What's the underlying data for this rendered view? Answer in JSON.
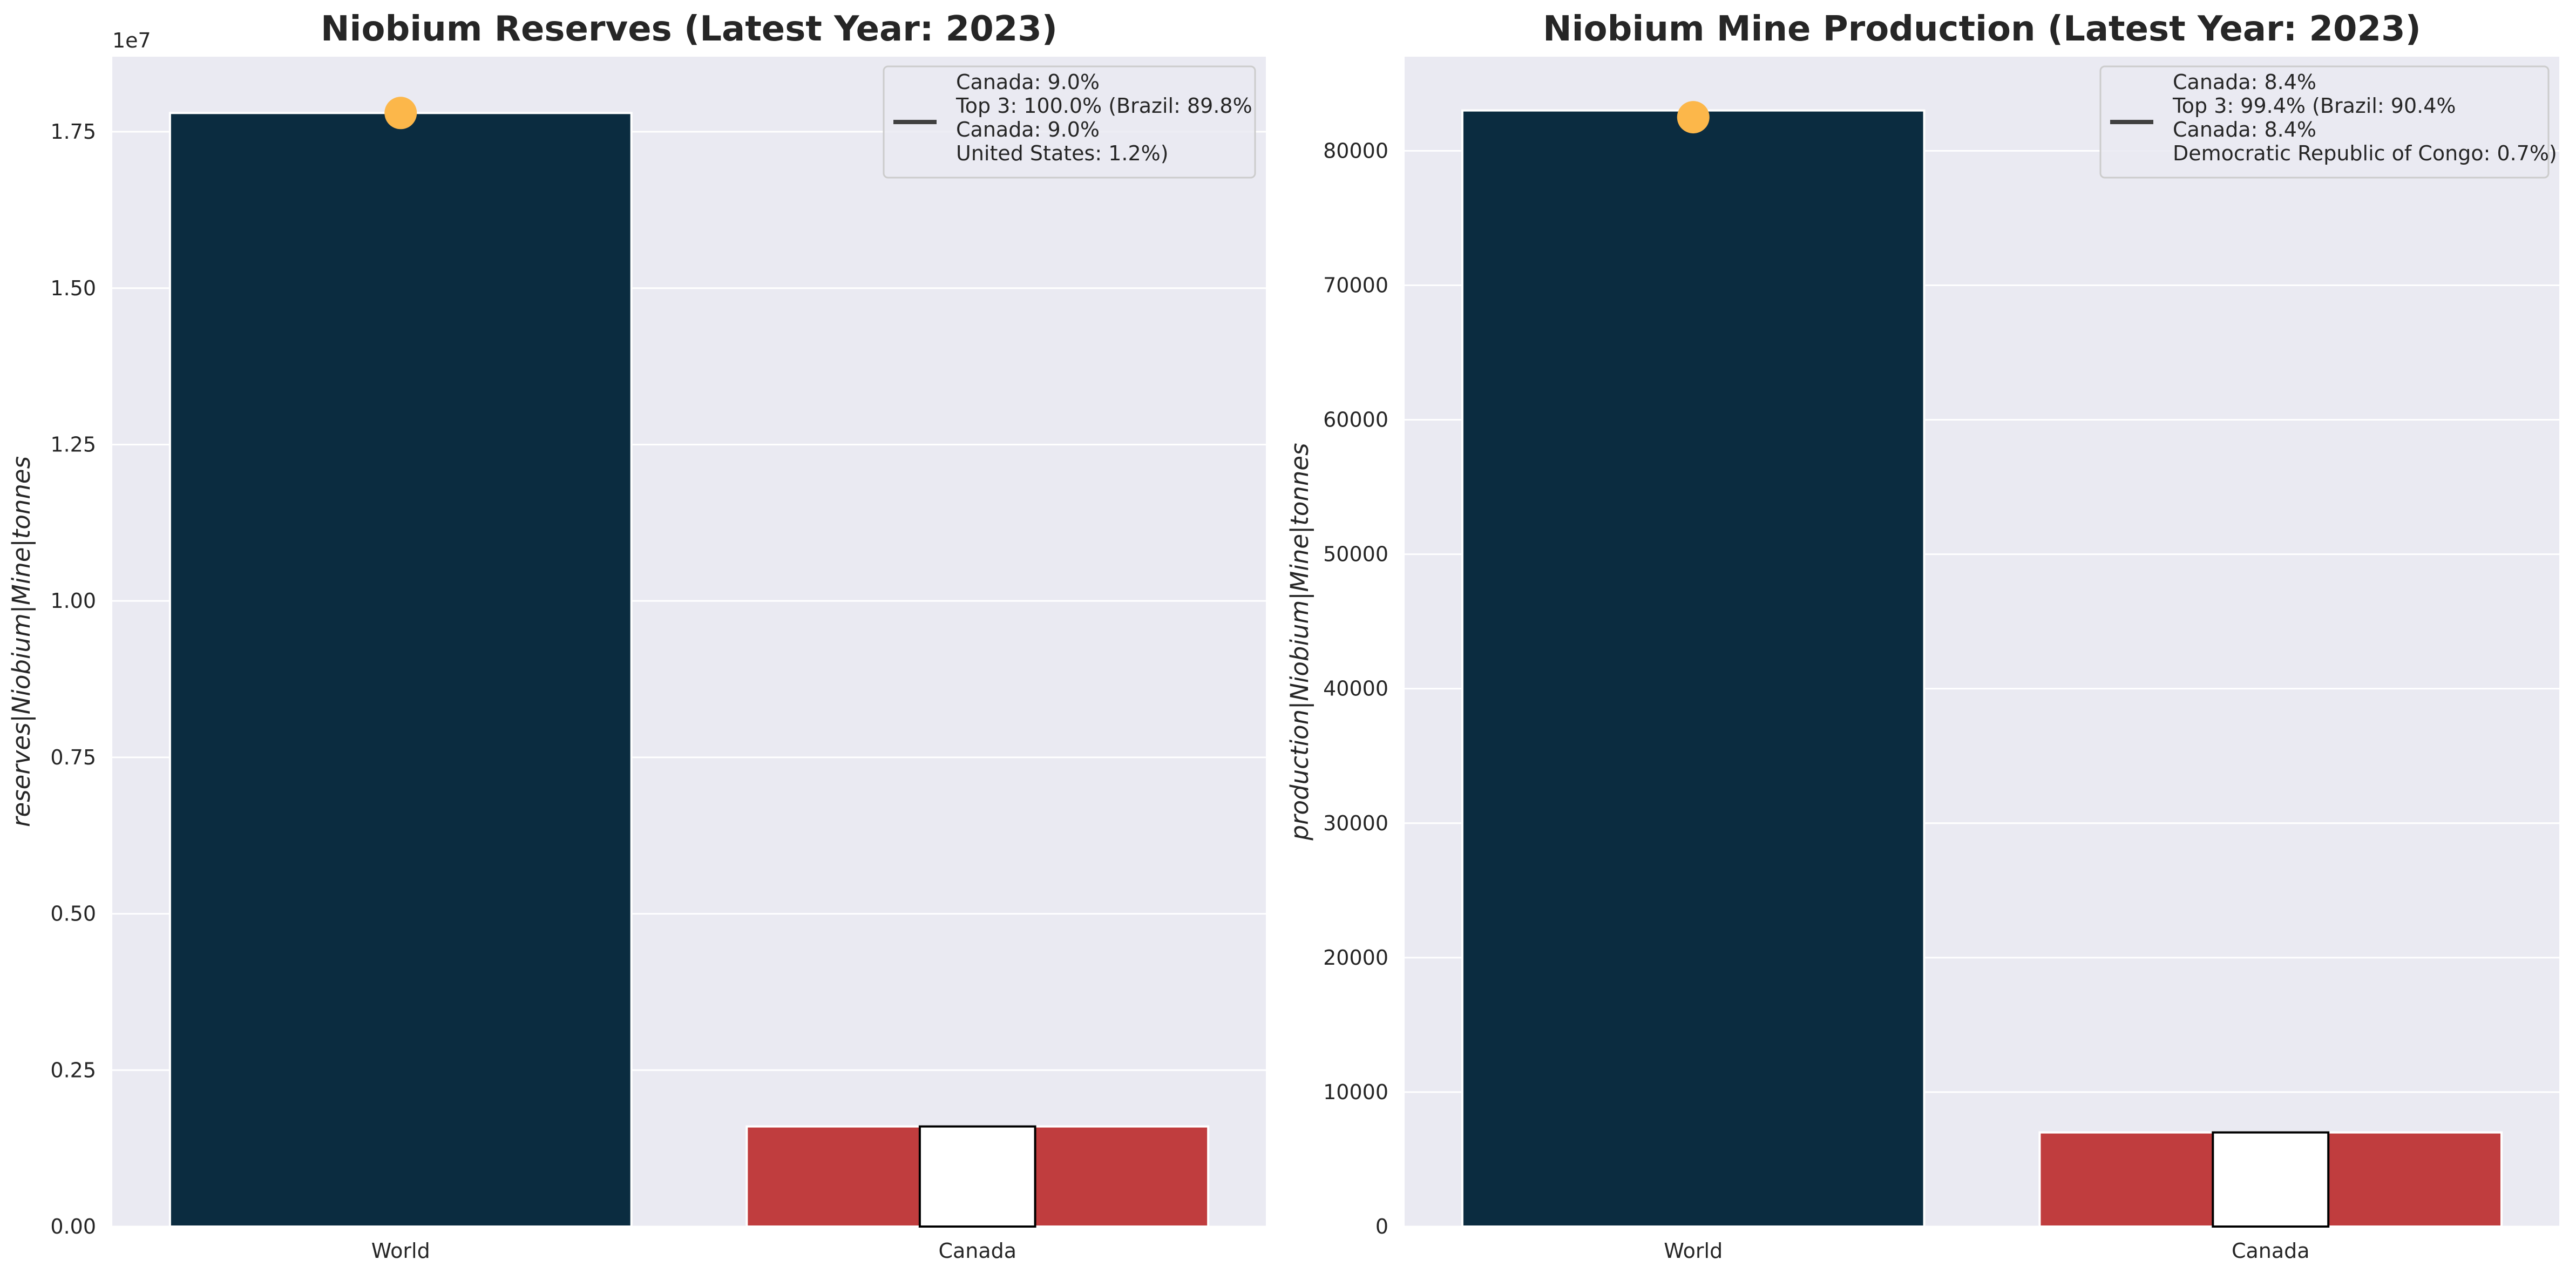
{
  "colors": {
    "background": "#eaeaf2",
    "grid": "#ffffff",
    "world_bar": "#0b2c40",
    "canada_bar": "#c03d3e",
    "inner_bar": "#ffffff",
    "marker": "#fcb74a",
    "legend_line": "#404040"
  },
  "chart_data": [
    {
      "type": "bar",
      "title": "Niobium Reserves (Latest Year: 2023)",
      "ylabel": "reserves|Niobium|Mine|tonnes",
      "xlabel": "",
      "categories": [
        "World",
        "Canada"
      ],
      "values": [
        17800000,
        1600000
      ],
      "highlight_value": 1600000,
      "marker_value": 17800000,
      "ylim": [
        0,
        18700000
      ],
      "yticks": [
        0,
        2500000,
        5000000,
        7500000,
        10000000,
        12500000,
        15000000,
        17500000
      ],
      "ytick_labels": [
        "0.00",
        "0.25",
        "0.50",
        "0.75",
        "1.00",
        "1.25",
        "1.50",
        "1.75"
      ],
      "offset_text": "1e7",
      "grid": true,
      "legend_position": "top-right",
      "legend_lines": [
        "Canada: 9.0%",
        "Top 3: 100.0% (Brazil: 89.8%",
        "Canada: 9.0%",
        "United States: 1.2%)"
      ]
    },
    {
      "type": "bar",
      "title": "Niobium Mine Production (Latest Year: 2023)",
      "ylabel": "production|Niobium|Mine|tonnes",
      "xlabel": "",
      "categories": [
        "World",
        "Canada"
      ],
      "values": [
        83000,
        7000
      ],
      "highlight_value": 7000,
      "marker_value": 82500,
      "ylim": [
        0,
        87000
      ],
      "yticks": [
        0,
        10000,
        20000,
        30000,
        40000,
        50000,
        60000,
        70000,
        80000
      ],
      "ytick_labels": [
        "0",
        "10000",
        "20000",
        "30000",
        "40000",
        "50000",
        "60000",
        "70000",
        "80000"
      ],
      "offset_text": "",
      "grid": true,
      "legend_position": "top-right",
      "legend_lines": [
        "Canada: 8.4%",
        "Top 3: 99.4% (Brazil: 90.4%",
        "Canada: 8.4%",
        "Democratic Republic of Congo: 0.7%)"
      ]
    }
  ]
}
